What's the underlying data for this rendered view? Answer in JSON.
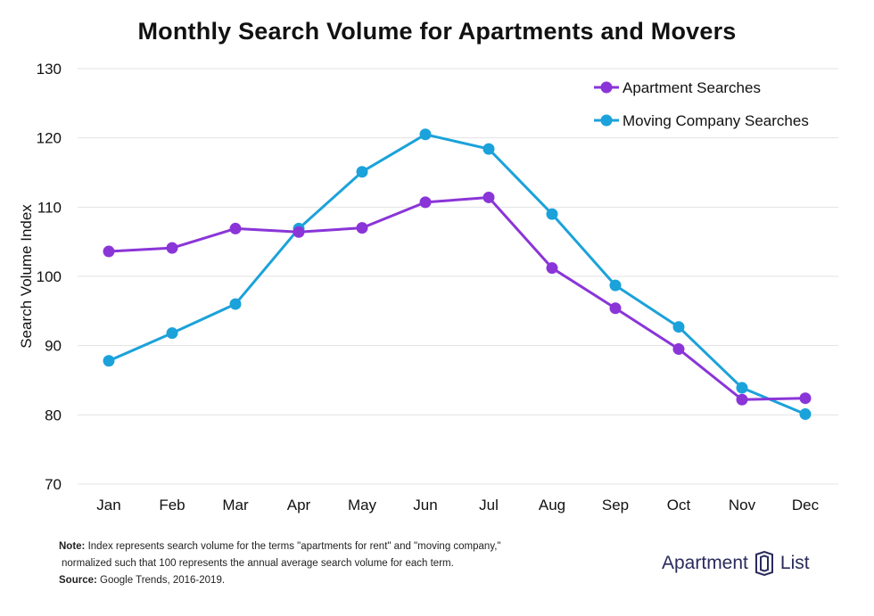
{
  "chart_data": {
    "type": "line",
    "title": "Monthly Search Volume for Apartments and Movers",
    "xlabel": "",
    "ylabel": "Search Volume Index",
    "categories": [
      "Jan",
      "Feb",
      "Mar",
      "Apr",
      "May",
      "Jun",
      "Jul",
      "Aug",
      "Sep",
      "Oct",
      "Nov",
      "Dec"
    ],
    "ylim": [
      70,
      130
    ],
    "yticks": [
      70,
      80,
      90,
      100,
      110,
      120,
      130
    ],
    "grid": true,
    "legend_position": "top-right",
    "series": [
      {
        "name": "Apartment Searches",
        "color": "#8a35d8",
        "values": [
          103.6,
          104.1,
          106.9,
          106.4,
          107.0,
          110.7,
          111.4,
          101.2,
          95.4,
          89.5,
          82.2,
          82.4
        ]
      },
      {
        "name": "Moving Company Searches",
        "color": "#1ba2da",
        "values": [
          87.8,
          91.8,
          96.0,
          106.9,
          115.1,
          120.5,
          118.4,
          109.0,
          98.7,
          92.7,
          83.9,
          80.1
        ]
      }
    ]
  },
  "notes": {
    "note_label": "Note:",
    "note_line1": " Index represents search volume for the terms \"apartments for rent\" and \"moving company,\"",
    "note_line2": "normalized such that 100 represents the annual average search volume for each term.",
    "source_label": "Source:",
    "source_text": " Google Trends, 2016-2019."
  },
  "logo": {
    "left_word": "Apartment",
    "right_word": "List"
  }
}
